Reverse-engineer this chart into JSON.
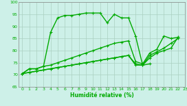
{
  "xlabel": "Humidité relative (%)",
  "xlim": [
    -0.5,
    23
  ],
  "ylim": [
    65,
    100
  ],
  "xticks": [
    0,
    1,
    2,
    3,
    4,
    5,
    6,
    7,
    8,
    9,
    10,
    11,
    12,
    13,
    14,
    15,
    16,
    17,
    18,
    19,
    20,
    21,
    22,
    23
  ],
  "yticks": [
    65,
    70,
    75,
    80,
    85,
    90,
    95,
    100
  ],
  "bg_color": "#cdf0e8",
  "grid_color": "#aacfc0",
  "line_color": "#00aa00",
  "line_width": 1.0,
  "marker": "+",
  "markersize": 3.5,
  "series": [
    [
      70.5,
      72.5,
      72.5,
      73.5,
      87.5,
      93.5,
      94.5,
      94.5,
      95,
      95.5,
      95.5,
      95.5,
      91.5,
      95,
      93.5,
      93.5,
      86,
      74,
      74.5,
      null,
      null,
      null,
      null,
      null
    ],
    [
      70.5,
      72.5,
      72.5,
      73.5,
      74,
      75,
      76,
      77,
      78,
      79,
      80,
      81,
      82,
      83,
      83.5,
      84,
      75.5,
      74.5,
      79,
      80.5,
      86,
      85,
      85.5,
      null
    ],
    [
      70.5,
      71,
      71.5,
      72,
      72.5,
      73,
      73.5,
      74,
      74.5,
      75,
      75.5,
      76,
      76.5,
      77,
      77.5,
      78,
      74.5,
      74,
      78,
      79.5,
      81,
      83,
      85,
      null
    ],
    [
      70.5,
      71,
      71.5,
      72,
      72.5,
      73,
      73.5,
      74,
      74.5,
      75,
      75.5,
      76,
      76.5,
      77,
      77.5,
      78,
      74,
      74,
      77,
      79,
      80,
      81,
      85.5,
      null
    ]
  ]
}
